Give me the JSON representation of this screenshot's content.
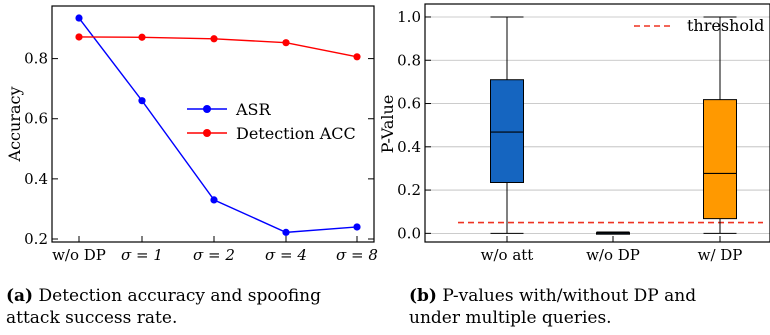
{
  "chart_data": [
    {
      "type": "line",
      "categories": [
        "w/o DP",
        "σ = 1",
        "σ = 2",
        "σ = 4",
        "σ = 8"
      ],
      "series": [
        {
          "name": "ASR",
          "values": [
            0.935,
            0.66,
            0.33,
            0.222,
            0.24
          ],
          "color": "#0000ff"
        },
        {
          "name": "Detection ACC",
          "values": [
            0.872,
            0.871,
            0.866,
            0.853,
            0.806
          ],
          "color": "#ff0000"
        }
      ],
      "ylabel": "Accuracy",
      "xlabel": "",
      "ylim": [
        0.19,
        0.975
      ],
      "yticks": [
        0.2,
        0.4,
        0.6,
        0.8
      ],
      "ytick_labels": [
        "0.2",
        "0.4",
        "0.6",
        "0.8"
      ],
      "legend": "center-right",
      "grid": false,
      "caption": {
        "label": "(a)",
        "line1": "Detection accuracy and spoofing",
        "line2": "attack success rate."
      }
    },
    {
      "type": "box",
      "categories": [
        "w/o att",
        "w/o DP",
        "w/ DP"
      ],
      "boxes": [
        {
          "min": 0.0,
          "q1": 0.235,
          "median": 0.468,
          "q3": 0.71,
          "max": 1.0,
          "color": "#1565c0"
        },
        {
          "min": 0.0,
          "q1": 0.0,
          "median": 0.001,
          "q3": 0.003,
          "max": 0.006,
          "color": "#1565c0"
        },
        {
          "min": 0.0,
          "q1": 0.068,
          "median": 0.277,
          "q3": 0.618,
          "max": 1.0,
          "color": "#ff9900"
        }
      ],
      "threshold": {
        "name": "threshold",
        "value": 0.05,
        "color": "#ee3322"
      },
      "ylabel": "P-Value",
      "xlabel": "",
      "ylim": [
        -0.04,
        1.06
      ],
      "yticks": [
        0.0,
        0.2,
        0.4,
        0.6,
        0.8,
        1.0
      ],
      "ytick_labels": [
        "0.0",
        "0.2",
        "0.4",
        "0.6",
        "0.8",
        "1.0"
      ],
      "legend": "top-right",
      "grid": true,
      "caption": {
        "label": "(b)",
        "line1": "P-values with/without DP and",
        "line2": "under multiple queries."
      }
    }
  ]
}
